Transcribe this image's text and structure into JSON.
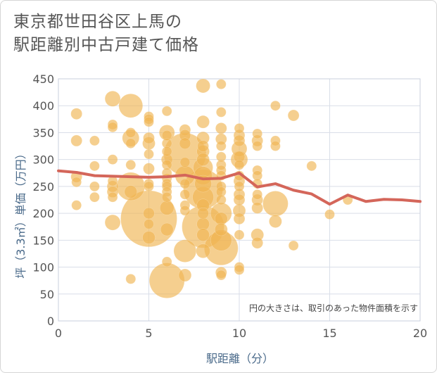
{
  "title_lines": [
    "東京都世田谷区上馬の",
    "駅距離別中古戸建て価格"
  ],
  "chart_data": {
    "type": "scatter",
    "title": "東京都世田谷区上馬の駅距離別中古戸建て価格",
    "xlabel": "駅距離（分）",
    "ylabel": "坪（3.3㎡）単価（万円）",
    "xlim": [
      0,
      20
    ],
    "ylim": [
      0,
      450
    ],
    "xticks": [
      0,
      5,
      10,
      15,
      20
    ],
    "yticks": [
      0,
      50,
      100,
      150,
      200,
      250,
      300,
      350,
      400,
      450
    ],
    "grid": true,
    "annotation": "円の大きさは、取引のあった物件面積を示す",
    "colors": {
      "bubble": "#f0b653",
      "line": "#d4665a",
      "grid": "#d9dee8",
      "axis_text": "#555555",
      "axis_title": "#4a6a8a"
    },
    "bubbles": [
      {
        "x": 1,
        "y": 385,
        "s": 8
      },
      {
        "x": 1,
        "y": 335,
        "s": 8
      },
      {
        "x": 1,
        "y": 268,
        "s": 8
      },
      {
        "x": 1,
        "y": 258,
        "s": 7
      },
      {
        "x": 1,
        "y": 215,
        "s": 7
      },
      {
        "x": 2,
        "y": 335,
        "s": 7
      },
      {
        "x": 2,
        "y": 288,
        "s": 7
      },
      {
        "x": 2,
        "y": 250,
        "s": 7
      },
      {
        "x": 2,
        "y": 230,
        "s": 7
      },
      {
        "x": 3,
        "y": 413,
        "s": 11
      },
      {
        "x": 3,
        "y": 365,
        "s": 7
      },
      {
        "x": 3,
        "y": 360,
        "s": 7
      },
      {
        "x": 3,
        "y": 300,
        "s": 7
      },
      {
        "x": 3,
        "y": 260,
        "s": 7
      },
      {
        "x": 3,
        "y": 250,
        "s": 8
      },
      {
        "x": 3,
        "y": 240,
        "s": 8
      },
      {
        "x": 3,
        "y": 230,
        "s": 7
      },
      {
        "x": 3,
        "y": 183,
        "s": 11
      },
      {
        "x": 4,
        "y": 400,
        "s": 17
      },
      {
        "x": 4,
        "y": 350,
        "s": 7
      },
      {
        "x": 4,
        "y": 340,
        "s": 12
      },
      {
        "x": 4,
        "y": 330,
        "s": 7
      },
      {
        "x": 4,
        "y": 290,
        "s": 7
      },
      {
        "x": 4,
        "y": 250,
        "s": 20
      },
      {
        "x": 4,
        "y": 240,
        "s": 9
      },
      {
        "x": 4,
        "y": 78,
        "s": 7
      },
      {
        "x": 5,
        "y": 380,
        "s": 7
      },
      {
        "x": 5,
        "y": 375,
        "s": 7
      },
      {
        "x": 5,
        "y": 370,
        "s": 7
      },
      {
        "x": 5,
        "y": 340,
        "s": 8
      },
      {
        "x": 5,
        "y": 330,
        "s": 9
      },
      {
        "x": 5,
        "y": 310,
        "s": 7
      },
      {
        "x": 5,
        "y": 283,
        "s": 8
      },
      {
        "x": 5,
        "y": 255,
        "s": 7
      },
      {
        "x": 5,
        "y": 250,
        "s": 7
      },
      {
        "x": 5,
        "y": 200,
        "s": 8
      },
      {
        "x": 5,
        "y": 190,
        "s": 40
      },
      {
        "x": 5,
        "y": 180,
        "s": 7
      },
      {
        "x": 5,
        "y": 155,
        "s": 9
      },
      {
        "x": 6,
        "y": 390,
        "s": 7
      },
      {
        "x": 6,
        "y": 350,
        "s": 11
      },
      {
        "x": 6,
        "y": 345,
        "s": 7
      },
      {
        "x": 6,
        "y": 330,
        "s": 7
      },
      {
        "x": 6,
        "y": 315,
        "s": 7
      },
      {
        "x": 6,
        "y": 300,
        "s": 8
      },
      {
        "x": 6,
        "y": 290,
        "s": 7
      },
      {
        "x": 6,
        "y": 275,
        "s": 7
      },
      {
        "x": 6,
        "y": 265,
        "s": 7
      },
      {
        "x": 6,
        "y": 255,
        "s": 7
      },
      {
        "x": 6,
        "y": 250,
        "s": 7
      },
      {
        "x": 6,
        "y": 240,
        "s": 7
      },
      {
        "x": 6,
        "y": 230,
        "s": 7
      },
      {
        "x": 6,
        "y": 210,
        "s": 10
      },
      {
        "x": 6,
        "y": 170,
        "s": 9
      },
      {
        "x": 6,
        "y": 110,
        "s": 7
      },
      {
        "x": 6,
        "y": 75,
        "s": 25
      },
      {
        "x": 7,
        "y": 355,
        "s": 8
      },
      {
        "x": 7,
        "y": 345,
        "s": 8
      },
      {
        "x": 7,
        "y": 330,
        "s": 8
      },
      {
        "x": 7,
        "y": 310,
        "s": 30
      },
      {
        "x": 7,
        "y": 295,
        "s": 7
      },
      {
        "x": 7,
        "y": 270,
        "s": 14
      },
      {
        "x": 7,
        "y": 255,
        "s": 7
      },
      {
        "x": 7,
        "y": 235,
        "s": 7
      },
      {
        "x": 7,
        "y": 215,
        "s": 7
      },
      {
        "x": 7,
        "y": 205,
        "s": 7
      },
      {
        "x": 7,
        "y": 130,
        "s": 16
      },
      {
        "x": 7,
        "y": 85,
        "s": 9
      },
      {
        "x": 8,
        "y": 437,
        "s": 10
      },
      {
        "x": 8,
        "y": 370,
        "s": 9
      },
      {
        "x": 8,
        "y": 340,
        "s": 9
      },
      {
        "x": 8,
        "y": 325,
        "s": 8
      },
      {
        "x": 8,
        "y": 315,
        "s": 9
      },
      {
        "x": 8,
        "y": 300,
        "s": 9
      },
      {
        "x": 8,
        "y": 285,
        "s": 14
      },
      {
        "x": 8,
        "y": 270,
        "s": 13
      },
      {
        "x": 8,
        "y": 255,
        "s": 12
      },
      {
        "x": 8,
        "y": 245,
        "s": 28
      },
      {
        "x": 8,
        "y": 230,
        "s": 15
      },
      {
        "x": 8,
        "y": 215,
        "s": 9
      },
      {
        "x": 8,
        "y": 200,
        "s": 8
      },
      {
        "x": 8,
        "y": 180,
        "s": 9
      },
      {
        "x": 8,
        "y": 175,
        "s": 30
      },
      {
        "x": 8,
        "y": 160,
        "s": 9
      },
      {
        "x": 8,
        "y": 130,
        "s": 10
      },
      {
        "x": 9,
        "y": 440,
        "s": 7
      },
      {
        "x": 9,
        "y": 388,
        "s": 7
      },
      {
        "x": 9,
        "y": 358,
        "s": 8
      },
      {
        "x": 9,
        "y": 338,
        "s": 8
      },
      {
        "x": 9,
        "y": 325,
        "s": 7
      },
      {
        "x": 9,
        "y": 305,
        "s": 7
      },
      {
        "x": 9,
        "y": 290,
        "s": 7
      },
      {
        "x": 9,
        "y": 280,
        "s": 7
      },
      {
        "x": 9,
        "y": 270,
        "s": 7
      },
      {
        "x": 9,
        "y": 250,
        "s": 7
      },
      {
        "x": 9,
        "y": 240,
        "s": 7
      },
      {
        "x": 9,
        "y": 225,
        "s": 7
      },
      {
        "x": 9,
        "y": 200,
        "s": 15
      },
      {
        "x": 9,
        "y": 190,
        "s": 9
      },
      {
        "x": 9,
        "y": 170,
        "s": 9
      },
      {
        "x": 9,
        "y": 150,
        "s": 15
      },
      {
        "x": 9,
        "y": 135,
        "s": 24
      },
      {
        "x": 9,
        "y": 90,
        "s": 8
      },
      {
        "x": 9,
        "y": 85,
        "s": 7
      },
      {
        "x": 10,
        "y": 358,
        "s": 7
      },
      {
        "x": 10,
        "y": 345,
        "s": 8
      },
      {
        "x": 10,
        "y": 335,
        "s": 8
      },
      {
        "x": 10,
        "y": 320,
        "s": 11
      },
      {
        "x": 10,
        "y": 305,
        "s": 8
      },
      {
        "x": 10,
        "y": 300,
        "s": 12
      },
      {
        "x": 10,
        "y": 290,
        "s": 7
      },
      {
        "x": 10,
        "y": 270,
        "s": 7
      },
      {
        "x": 10,
        "y": 260,
        "s": 8
      },
      {
        "x": 10,
        "y": 250,
        "s": 7
      },
      {
        "x": 10,
        "y": 235,
        "s": 8
      },
      {
        "x": 10,
        "y": 225,
        "s": 8
      },
      {
        "x": 10,
        "y": 205,
        "s": 9
      },
      {
        "x": 10,
        "y": 190,
        "s": 8
      },
      {
        "x": 10,
        "y": 160,
        "s": 7
      },
      {
        "x": 10,
        "y": 100,
        "s": 7
      },
      {
        "x": 10,
        "y": 95,
        "s": 7
      },
      {
        "x": 11,
        "y": 348,
        "s": 7
      },
      {
        "x": 11,
        "y": 335,
        "s": 8
      },
      {
        "x": 11,
        "y": 325,
        "s": 7
      },
      {
        "x": 11,
        "y": 280,
        "s": 7
      },
      {
        "x": 11,
        "y": 270,
        "s": 7
      },
      {
        "x": 11,
        "y": 255,
        "s": 7
      },
      {
        "x": 11,
        "y": 235,
        "s": 7
      },
      {
        "x": 11,
        "y": 225,
        "s": 8
      },
      {
        "x": 11,
        "y": 210,
        "s": 8
      },
      {
        "x": 11,
        "y": 160,
        "s": 9
      },
      {
        "x": 11,
        "y": 145,
        "s": 8
      },
      {
        "x": 12,
        "y": 400,
        "s": 7
      },
      {
        "x": 12,
        "y": 335,
        "s": 7
      },
      {
        "x": 12,
        "y": 325,
        "s": 7
      },
      {
        "x": 12,
        "y": 218,
        "s": 18
      },
      {
        "x": 12,
        "y": 185,
        "s": 9
      },
      {
        "x": 13,
        "y": 382,
        "s": 8
      },
      {
        "x": 13,
        "y": 140,
        "s": 7
      },
      {
        "x": 14,
        "y": 288,
        "s": 7
      },
      {
        "x": 15,
        "y": 198,
        "s": 7
      },
      {
        "x": 16,
        "y": 225,
        "s": 7
      }
    ],
    "trend": {
      "x": [
        0,
        1,
        2,
        3,
        4,
        5,
        6,
        7,
        8,
        9,
        10,
        11,
        12,
        13,
        14,
        15,
        16,
        17,
        18,
        19,
        20
      ],
      "y": [
        279,
        276,
        270,
        269,
        268,
        267,
        268,
        271,
        264,
        265,
        275,
        249,
        255,
        243,
        236,
        217,
        234,
        222,
        226,
        225,
        222
      ]
    }
  }
}
